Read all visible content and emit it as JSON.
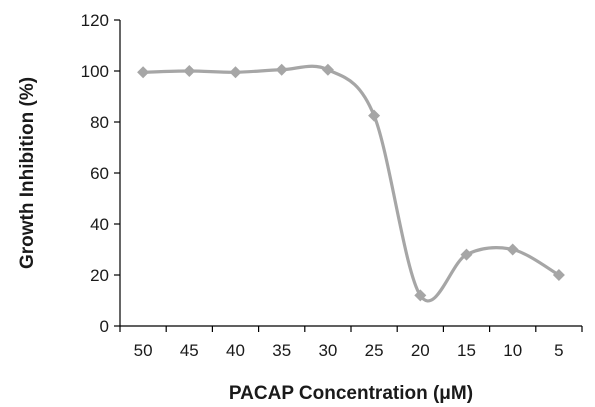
{
  "chart_data": {
    "type": "line",
    "title": "",
    "xlabel": "PACAP Concentration (μM)",
    "ylabel": "Growth Inhibition (%)",
    "x": [
      50,
      45,
      40,
      35,
      30,
      25,
      20,
      15,
      10,
      5
    ],
    "x_tick_labels": [
      "50",
      "45",
      "40",
      "35",
      "30",
      "25",
      "20",
      "15",
      "10",
      "5"
    ],
    "y_tick_labels": [
      "0",
      "20",
      "40",
      "60",
      "80",
      "100",
      "120"
    ],
    "ylim": [
      0,
      120
    ],
    "grid": false,
    "legend": "none",
    "series": [
      {
        "values": [
          99.5,
          100,
          99.5,
          100.5,
          100.5,
          82.5,
          12,
          28,
          30,
          20
        ],
        "color": "#a6a6a6",
        "marker": "diamond",
        "smoothed": true
      }
    ]
  }
}
